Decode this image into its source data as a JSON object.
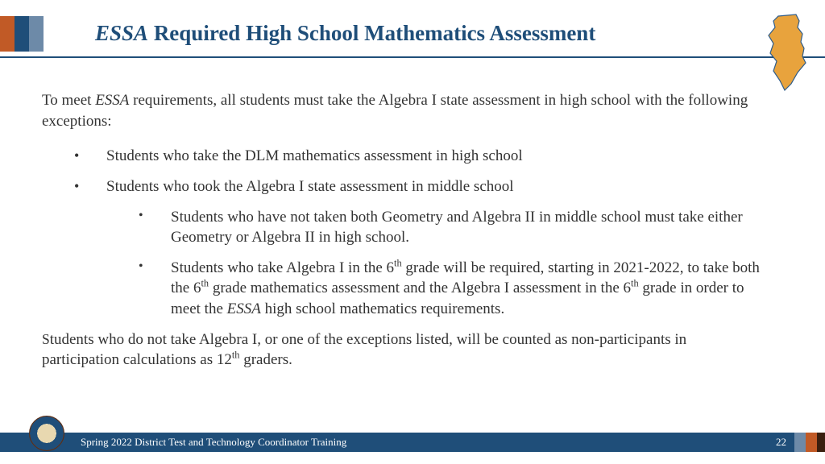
{
  "colors": {
    "title": "#1f4e79",
    "underline": "#1f4e79",
    "text": "#333333",
    "footer_bg": "#1f4e79",
    "footer_text": "#ffffff",
    "nj_fill": "#e8a33d",
    "nj_stroke": "#2e5c8a"
  },
  "header_stripes": [
    {
      "width": 18,
      "color": "#c15a26"
    },
    {
      "width": 18,
      "color": "#1f4e79"
    },
    {
      "width": 18,
      "color": "#6d8aa8"
    },
    {
      "width": 54,
      "color": "#ffffff"
    }
  ],
  "title": {
    "essa": "ESSA",
    "rest": " Required High School Mathematics Assessment"
  },
  "intro": {
    "pre": "To meet ",
    "essa": "ESSA",
    "post": " requirements, all students must take the Algebra I state assessment in high school with the following exceptions:"
  },
  "bullets": [
    {
      "text": "Students who take the DLM mathematics assessment in high school"
    },
    {
      "text": "Students who took the Algebra I state assessment in middle school",
      "sub": [
        {
          "text": "Students who have not taken both Geometry and Algebra II in middle school must take either Geometry or Algebra II in high school."
        },
        {
          "pre": "Students who take Algebra I in the 6",
          "sup1": "th",
          "mid1": " grade will be required, starting in 2021-2022, to take both the 6",
          "sup2": "th",
          "mid2": " grade mathematics assessment and the Algebra I assessment in the 6",
          "sup3": "th",
          "mid3": " grade in order to meet the ",
          "essa": "ESSA",
          "post": " high school mathematics requirements."
        }
      ]
    }
  ],
  "closing": {
    "small_s": "S",
    "pre": "tudents who do not take Algebra I, or one of the exceptions listed, will be counted as non-participants in participation calculations as 12",
    "sup": "th",
    "post": " graders."
  },
  "footer": {
    "text": "Spring 2022 District Test and Technology Coordinator Training",
    "page": "22",
    "stripes": [
      {
        "width": 14,
        "color": "#6d8aa8"
      },
      {
        "width": 14,
        "color": "#c15a26"
      },
      {
        "width": 10,
        "color": "#3a1f0f"
      }
    ]
  }
}
